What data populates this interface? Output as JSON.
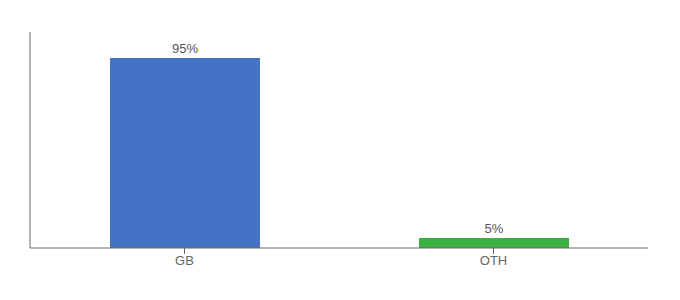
{
  "chart_data": {
    "type": "bar",
    "categories": [
      "GB",
      "OTH"
    ],
    "values": [
      95,
      5
    ],
    "value_labels": [
      "95%",
      "5%"
    ],
    "colors": [
      "#4472c4",
      "#3cb043"
    ],
    "ylim": [
      0,
      108
    ],
    "tick_labels": "x",
    "data_labels": true
  }
}
